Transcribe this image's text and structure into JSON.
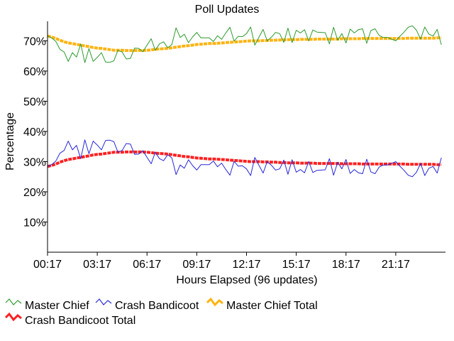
{
  "chart_data": {
    "type": "line",
    "title": "Poll Updates",
    "xlabel": "Hours Elapsed (96 updates)",
    "ylabel": "Percentage",
    "x_tick_labels": [
      "00:17",
      "03:17",
      "06:17",
      "09:17",
      "12:17",
      "15:17",
      "18:17",
      "21:17"
    ],
    "x_tick_update_index": [
      0,
      12,
      24,
      36,
      48,
      60,
      72,
      84
    ],
    "x_range": [
      0,
      96
    ],
    "ylim": [
      0,
      76
    ],
    "y_ticks": [
      10,
      20,
      30,
      40,
      50,
      60,
      70
    ],
    "y_tick_labels": [
      "10%",
      "20%",
      "30%",
      "40%",
      "50%",
      "60%",
      "70%"
    ],
    "grid": false,
    "legend_position": "bottom",
    "series": [
      {
        "name": "Master Chief",
        "color": "#2e9a2e",
        "style": "thin",
        "values": [
          71.6,
          71.0,
          69.8,
          67.2,
          66.3,
          63.2,
          66.1,
          64.6,
          69.0,
          62.8,
          67.4,
          63.2,
          64.5,
          66.1,
          63.0,
          62.9,
          63.4,
          66.9,
          66.3,
          64.0,
          64.2,
          67.6,
          67.5,
          66.4,
          68.6,
          70.7,
          66.9,
          69.0,
          69.7,
          67.7,
          68.8,
          74.3,
          71.1,
          72.2,
          69.4,
          71.3,
          72.8,
          71.0,
          71.0,
          71.0,
          69.8,
          71.7,
          70.5,
          72.6,
          74.5,
          69.9,
          71.5,
          71.4,
          72.4,
          74.6,
          68.6,
          71.2,
          73.8,
          70.0,
          71.2,
          72.8,
          72.4,
          69.5,
          74.2,
          69.4,
          73.5,
          72.6,
          73.7,
          70.0,
          73.6,
          72.9,
          72.8,
          72.7,
          69.0,
          74.5,
          70.2,
          72.4,
          69.3,
          73.9,
          72.6,
          73.7,
          74.0,
          69.2,
          73.4,
          74.0,
          71.8,
          71.1,
          71.1,
          70.6,
          70.0,
          71.5,
          72.9,
          74.5,
          75.0,
          73.5,
          70.6,
          74.6,
          72.2,
          71.6,
          73.8,
          68.7
        ]
      },
      {
        "name": "Crash Bandicoot",
        "color": "#2828d8",
        "style": "thin",
        "values": [
          28.4,
          29.0,
          30.2,
          32.8,
          33.7,
          36.8,
          33.9,
          35.4,
          31.0,
          37.2,
          32.6,
          36.8,
          35.5,
          33.9,
          37.0,
          37.1,
          36.6,
          33.1,
          33.7,
          36.0,
          35.8,
          32.4,
          32.5,
          33.6,
          31.4,
          29.3,
          33.1,
          31.0,
          30.3,
          32.3,
          31.2,
          25.7,
          28.9,
          27.8,
          30.6,
          28.7,
          27.2,
          29.0,
          29.0,
          29.0,
          30.2,
          28.3,
          29.5,
          27.4,
          25.5,
          30.1,
          28.5,
          28.6,
          27.6,
          25.4,
          31.4,
          28.8,
          26.2,
          30.0,
          28.8,
          27.2,
          27.6,
          30.5,
          25.8,
          30.6,
          26.5,
          27.4,
          26.3,
          30.0,
          26.4,
          27.1,
          27.2,
          27.3,
          31.0,
          25.5,
          29.8,
          27.6,
          30.7,
          26.1,
          27.4,
          26.3,
          26.0,
          30.8,
          26.6,
          26.0,
          28.2,
          28.9,
          28.9,
          29.4,
          30.0,
          28.5,
          27.1,
          25.5,
          25.0,
          26.5,
          29.4,
          25.4,
          27.8,
          28.4,
          26.2,
          31.3
        ]
      },
      {
        "name": "Master Chief Total",
        "color": "#ffb30f",
        "style": "thick",
        "values": [
          71.6,
          71.3,
          70.8,
          70.2,
          69.7,
          69.3,
          69.1,
          68.8,
          68.6,
          68.3,
          68.1,
          67.8,
          67.6,
          67.5,
          67.3,
          67.1,
          66.9,
          66.9,
          66.9,
          66.8,
          66.8,
          66.8,
          66.8,
          66.8,
          66.9,
          67.0,
          67.2,
          67.3,
          67.4,
          67.5,
          67.7,
          67.9,
          68.1,
          68.3,
          68.4,
          68.6,
          68.8,
          68.9,
          69.0,
          69.1,
          69.1,
          69.2,
          69.3,
          69.4,
          69.5,
          69.6,
          69.7,
          69.8,
          69.9,
          70.0,
          70.0,
          70.0,
          70.1,
          70.1,
          70.2,
          70.2,
          70.3,
          70.3,
          70.4,
          70.4,
          70.4,
          70.5,
          70.5,
          70.5,
          70.5,
          70.6,
          70.6,
          70.6,
          70.6,
          70.6,
          70.6,
          70.7,
          70.7,
          70.7,
          70.7,
          70.7,
          70.8,
          70.8,
          70.8,
          70.8,
          70.8,
          70.8,
          70.8,
          70.8,
          70.8,
          70.8,
          70.8,
          70.9,
          70.9,
          70.9,
          70.9,
          70.9,
          70.9,
          70.9,
          71.0,
          71.0
        ]
      },
      {
        "name": "Crash Bandicoot Total",
        "color": "#ff2020",
        "style": "thick",
        "values": [
          28.4,
          28.7,
          29.2,
          29.8,
          30.3,
          30.7,
          30.9,
          31.2,
          31.4,
          31.7,
          31.9,
          32.2,
          32.4,
          32.5,
          32.7,
          32.9,
          33.1,
          33.1,
          33.1,
          33.2,
          33.2,
          33.2,
          33.2,
          33.2,
          33.1,
          33.0,
          32.8,
          32.7,
          32.6,
          32.5,
          32.3,
          32.1,
          31.9,
          31.7,
          31.6,
          31.4,
          31.2,
          31.1,
          31.0,
          30.9,
          30.9,
          30.8,
          30.7,
          30.6,
          30.5,
          30.4,
          30.3,
          30.2,
          30.1,
          30.0,
          30.0,
          30.0,
          29.9,
          29.9,
          29.8,
          29.8,
          29.7,
          29.7,
          29.6,
          29.6,
          29.6,
          29.5,
          29.5,
          29.5,
          29.5,
          29.4,
          29.4,
          29.4,
          29.4,
          29.4,
          29.4,
          29.3,
          29.3,
          29.3,
          29.3,
          29.3,
          29.2,
          29.2,
          29.2,
          29.2,
          29.2,
          29.2,
          29.2,
          29.2,
          29.2,
          29.2,
          29.2,
          29.1,
          29.1,
          29.1,
          29.1,
          29.1,
          29.1,
          29.1,
          29.0,
          29.0
        ]
      }
    ]
  }
}
